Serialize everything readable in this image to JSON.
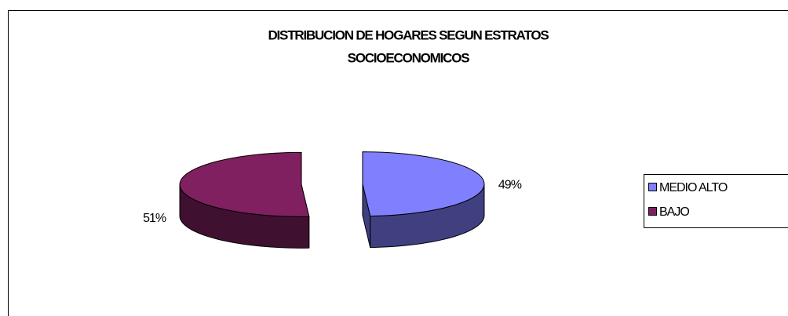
{
  "chart_data": {
    "type": "pie3d",
    "title": [
      "DISTRIBUCION DE HOGARES SEGUN ESTRATOS",
      "SOCIOECONOMICOS"
    ],
    "categories": [
      "MEDIO ALTO",
      "BAJO"
    ],
    "values": [
      49,
      51
    ],
    "value_labels": [
      "49%",
      "51%"
    ],
    "colors": [
      "#8080ff",
      "#802060"
    ],
    "legend": "right"
  }
}
